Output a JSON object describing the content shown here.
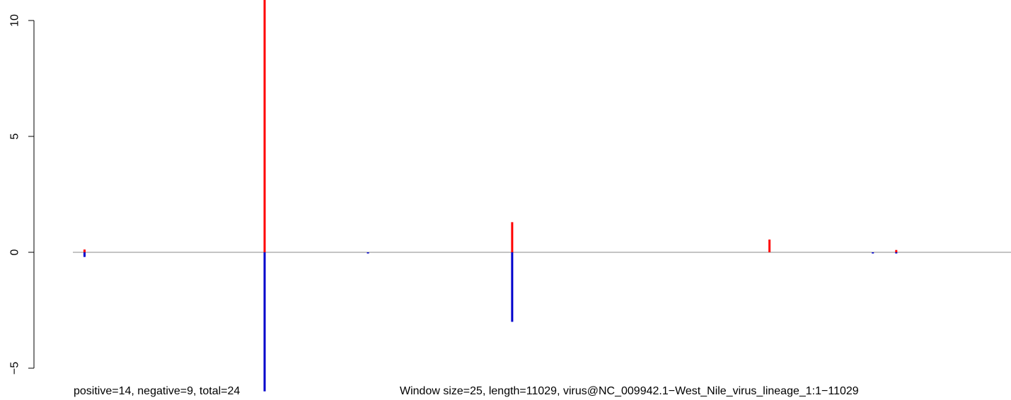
{
  "chart_data": {
    "type": "bar",
    "title": "",
    "xlabel": "",
    "ylabel": "",
    "xlim": [
      1,
      11029
    ],
    "ylim": [
      -5,
      10
    ],
    "y_ticks": [
      "10",
      "5",
      "0",
      "−5"
    ],
    "y_tick_values": [
      10,
      5,
      0,
      -5
    ],
    "baseline": 0,
    "grid": false,
    "colors": {
      "positive": "#ff0000",
      "negative": "#0000cc",
      "baseline": "#888888"
    },
    "series": [
      {
        "name": "positive",
        "color": "#ff0000",
        "points": [
          {
            "x": 138,
            "value": 0.12
          },
          {
            "x": 2255,
            "value": 11.0
          },
          {
            "x": 5165,
            "value": 1.3
          },
          {
            "x": 8190,
            "value": 0.55
          },
          {
            "x": 9680,
            "value": 0.1
          }
        ]
      },
      {
        "name": "negative",
        "color": "#0000cc",
        "points": [
          {
            "x": 138,
            "value": -0.2
          },
          {
            "x": 2255,
            "value": -6.0
          },
          {
            "x": 3470,
            "value": -0.05
          },
          {
            "x": 5165,
            "value": -3.0
          },
          {
            "x": 9405,
            "value": -0.05
          },
          {
            "x": 9680,
            "value": -0.05
          }
        ]
      }
    ]
  },
  "footer": {
    "counts": "positive=14, negative=9, total=24",
    "info": "Window size=25, length=11029, virus@NC_009942.1−West_Nile_virus_lineage_1:1−11029"
  }
}
